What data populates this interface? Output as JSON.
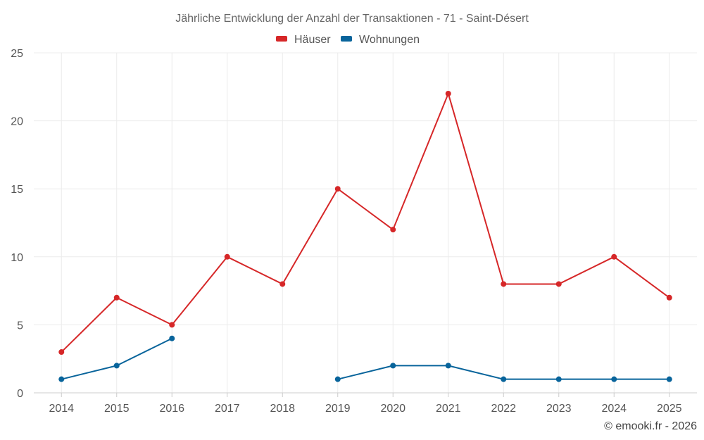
{
  "chart_data": {
    "type": "line",
    "title": "Jährliche Entwicklung der Anzahl der Transaktionen - 71 - Saint-Désert",
    "categories": [
      "2014",
      "2015",
      "2016",
      "2017",
      "2018",
      "2019",
      "2020",
      "2021",
      "2022",
      "2023",
      "2024",
      "2025"
    ],
    "series": [
      {
        "name": "Häuser",
        "color": "#d62728",
        "values": [
          3,
          7,
          5,
          10,
          8,
          15,
          12,
          22,
          8,
          8,
          10,
          7
        ]
      },
      {
        "name": "Wohnungen",
        "color": "#08649b",
        "values": [
          1,
          2,
          4,
          null,
          null,
          1,
          2,
          2,
          1,
          1,
          1,
          1
        ]
      }
    ],
    "y_ticks": [
      "0",
      "5",
      "10",
      "15",
      "20",
      "25"
    ],
    "ylim": [
      0,
      25
    ],
    "xlabel": "",
    "ylabel": "",
    "grid": true,
    "legend_position": "top-center"
  },
  "credit": "© emooki.fr - 2026"
}
